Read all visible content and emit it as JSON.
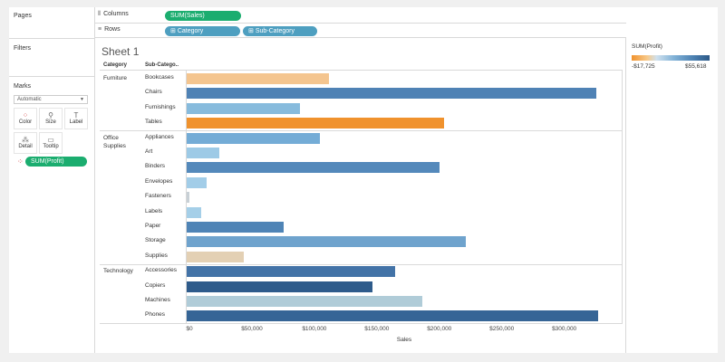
{
  "panels": {
    "pages": "Pages",
    "filters": "Filters",
    "marks": "Marks"
  },
  "shelves": {
    "columns_label": "Columns",
    "rows_label": "Rows",
    "columns_pills": [
      "SUM(Sales)"
    ],
    "rows_pills": [
      "Category",
      "Sub-Category"
    ]
  },
  "marks_card": {
    "mark_type": "Automatic",
    "buttons": [
      {
        "label": "Color",
        "icon": "color-dots-icon"
      },
      {
        "label": "Size",
        "icon": "size-icon"
      },
      {
        "label": "Label",
        "icon": "label-icon"
      },
      {
        "label": "Detail",
        "icon": "detail-icon"
      },
      {
        "label": "Tooltip",
        "icon": "tooltip-icon"
      }
    ],
    "field_pill": "SUM(Profit)"
  },
  "sheet": {
    "title": "Sheet 1",
    "headers": {
      "category": "Category",
      "subcategory": "Sub-Catego.."
    }
  },
  "legend": {
    "title": "SUM(Profit)",
    "min": "-$17,725",
    "max": "$55,618",
    "colors": [
      "#f0922d",
      "#2d5987"
    ]
  },
  "chart_data": {
    "type": "bar",
    "orientation": "horizontal",
    "xlabel": "Sales",
    "xlim": [
      0,
      335000
    ],
    "x_ticks": [
      "$0",
      "$50,000",
      "$100,000",
      "$150,000",
      "$200,000",
      "$250,000",
      "$300,000"
    ],
    "x_tick_values": [
      0,
      50000,
      100000,
      150000,
      200000,
      250000,
      300000
    ],
    "groups": [
      {
        "category": "Furniture",
        "category_label": "Furniture",
        "items": [
          {
            "name": "Bookcases",
            "sales": 114880,
            "color": "#f4c58f"
          },
          {
            "name": "Chairs",
            "sales": 328449,
            "color": "#4f82b5"
          },
          {
            "name": "Furnishings",
            "sales": 91705,
            "color": "#87bbdd"
          },
          {
            "name": "Tables",
            "sales": 206966,
            "color": "#f0922d"
          }
        ]
      },
      {
        "category": "Office Supplies",
        "category_label": "Office Supplies",
        "items": [
          {
            "name": "Appliances",
            "sales": 107532,
            "color": "#74acd6"
          },
          {
            "name": "Art",
            "sales": 27119,
            "color": "#9dcae6"
          },
          {
            "name": "Binders",
            "sales": 203413,
            "color": "#5489bb"
          },
          {
            "name": "Envelopes",
            "sales": 16476,
            "color": "#a2cde8"
          },
          {
            "name": "Fasteners",
            "sales": 3024,
            "color": "#c8d0d6"
          },
          {
            "name": "Labels",
            "sales": 12486,
            "color": "#a5cfe8"
          },
          {
            "name": "Paper",
            "sales": 78479,
            "color": "#4f84b6"
          },
          {
            "name": "Storage",
            "sales": 223844,
            "color": "#6fa3cd"
          },
          {
            "name": "Supplies",
            "sales": 46674,
            "color": "#e3d0b4"
          }
        ]
      },
      {
        "category": "Technology",
        "category_label": "Technology",
        "items": [
          {
            "name": "Accessories",
            "sales": 167380,
            "color": "#4373a7"
          },
          {
            "name": "Copiers",
            "sales": 149528,
            "color": "#2e5b8b"
          },
          {
            "name": "Machines",
            "sales": 189239,
            "color": "#b0ccd8"
          },
          {
            "name": "Phones",
            "sales": 330007,
            "color": "#366596"
          }
        ]
      }
    ]
  }
}
